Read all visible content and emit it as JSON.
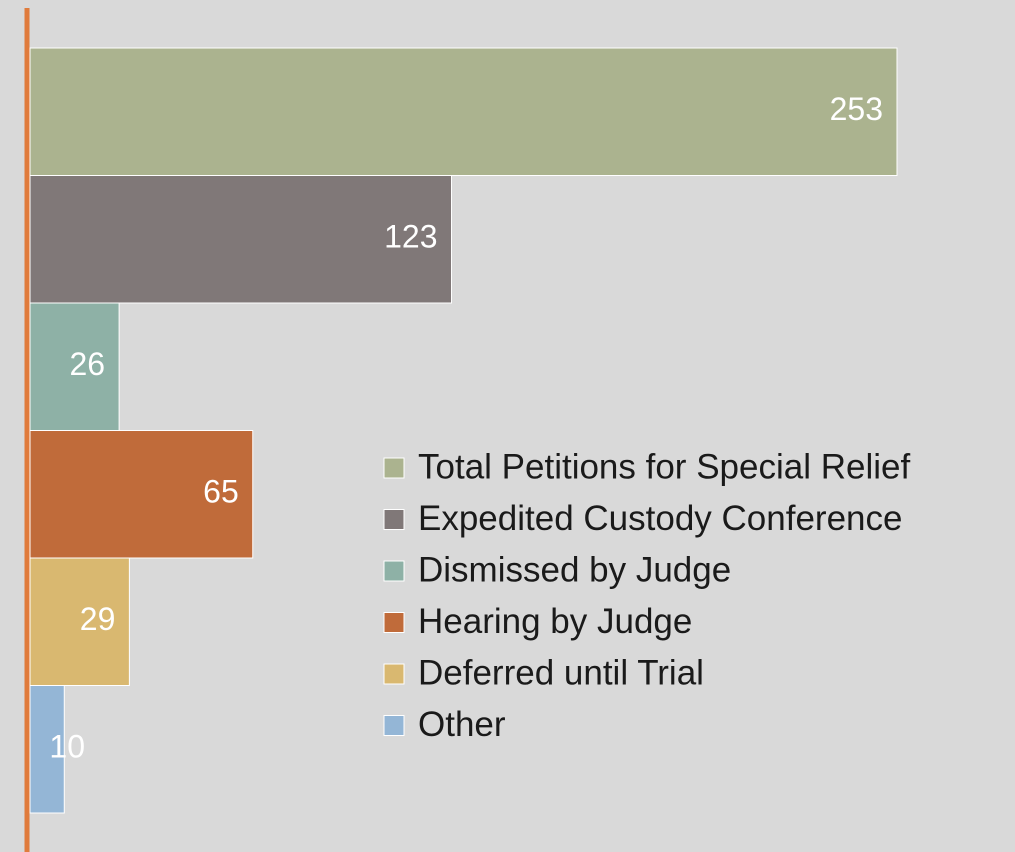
{
  "chart_data": {
    "type": "bar",
    "orientation": "horizontal",
    "series": [
      {
        "name": "Total Petitions for Special Relief",
        "color": "#abb38f",
        "values": [
          253
        ]
      },
      {
        "name": "Expedited Custody Conference",
        "color": "#807878",
        "values": [
          123
        ]
      },
      {
        "name": "Dismissed by Judge",
        "color": "#8eb1a6",
        "values": [
          26
        ]
      },
      {
        "name": "Hearing by Judge",
        "color": "#c06b3a",
        "values": [
          65
        ]
      },
      {
        "name": "Deferred until Trial",
        "color": "#d9b870",
        "values": [
          29
        ]
      },
      {
        "name": "Other",
        "color": "#94b6d6",
        "values": [
          10
        ]
      }
    ],
    "xlim": [
      0,
      280
    ],
    "axis_color": "#e07b3c",
    "legend": "right"
  }
}
